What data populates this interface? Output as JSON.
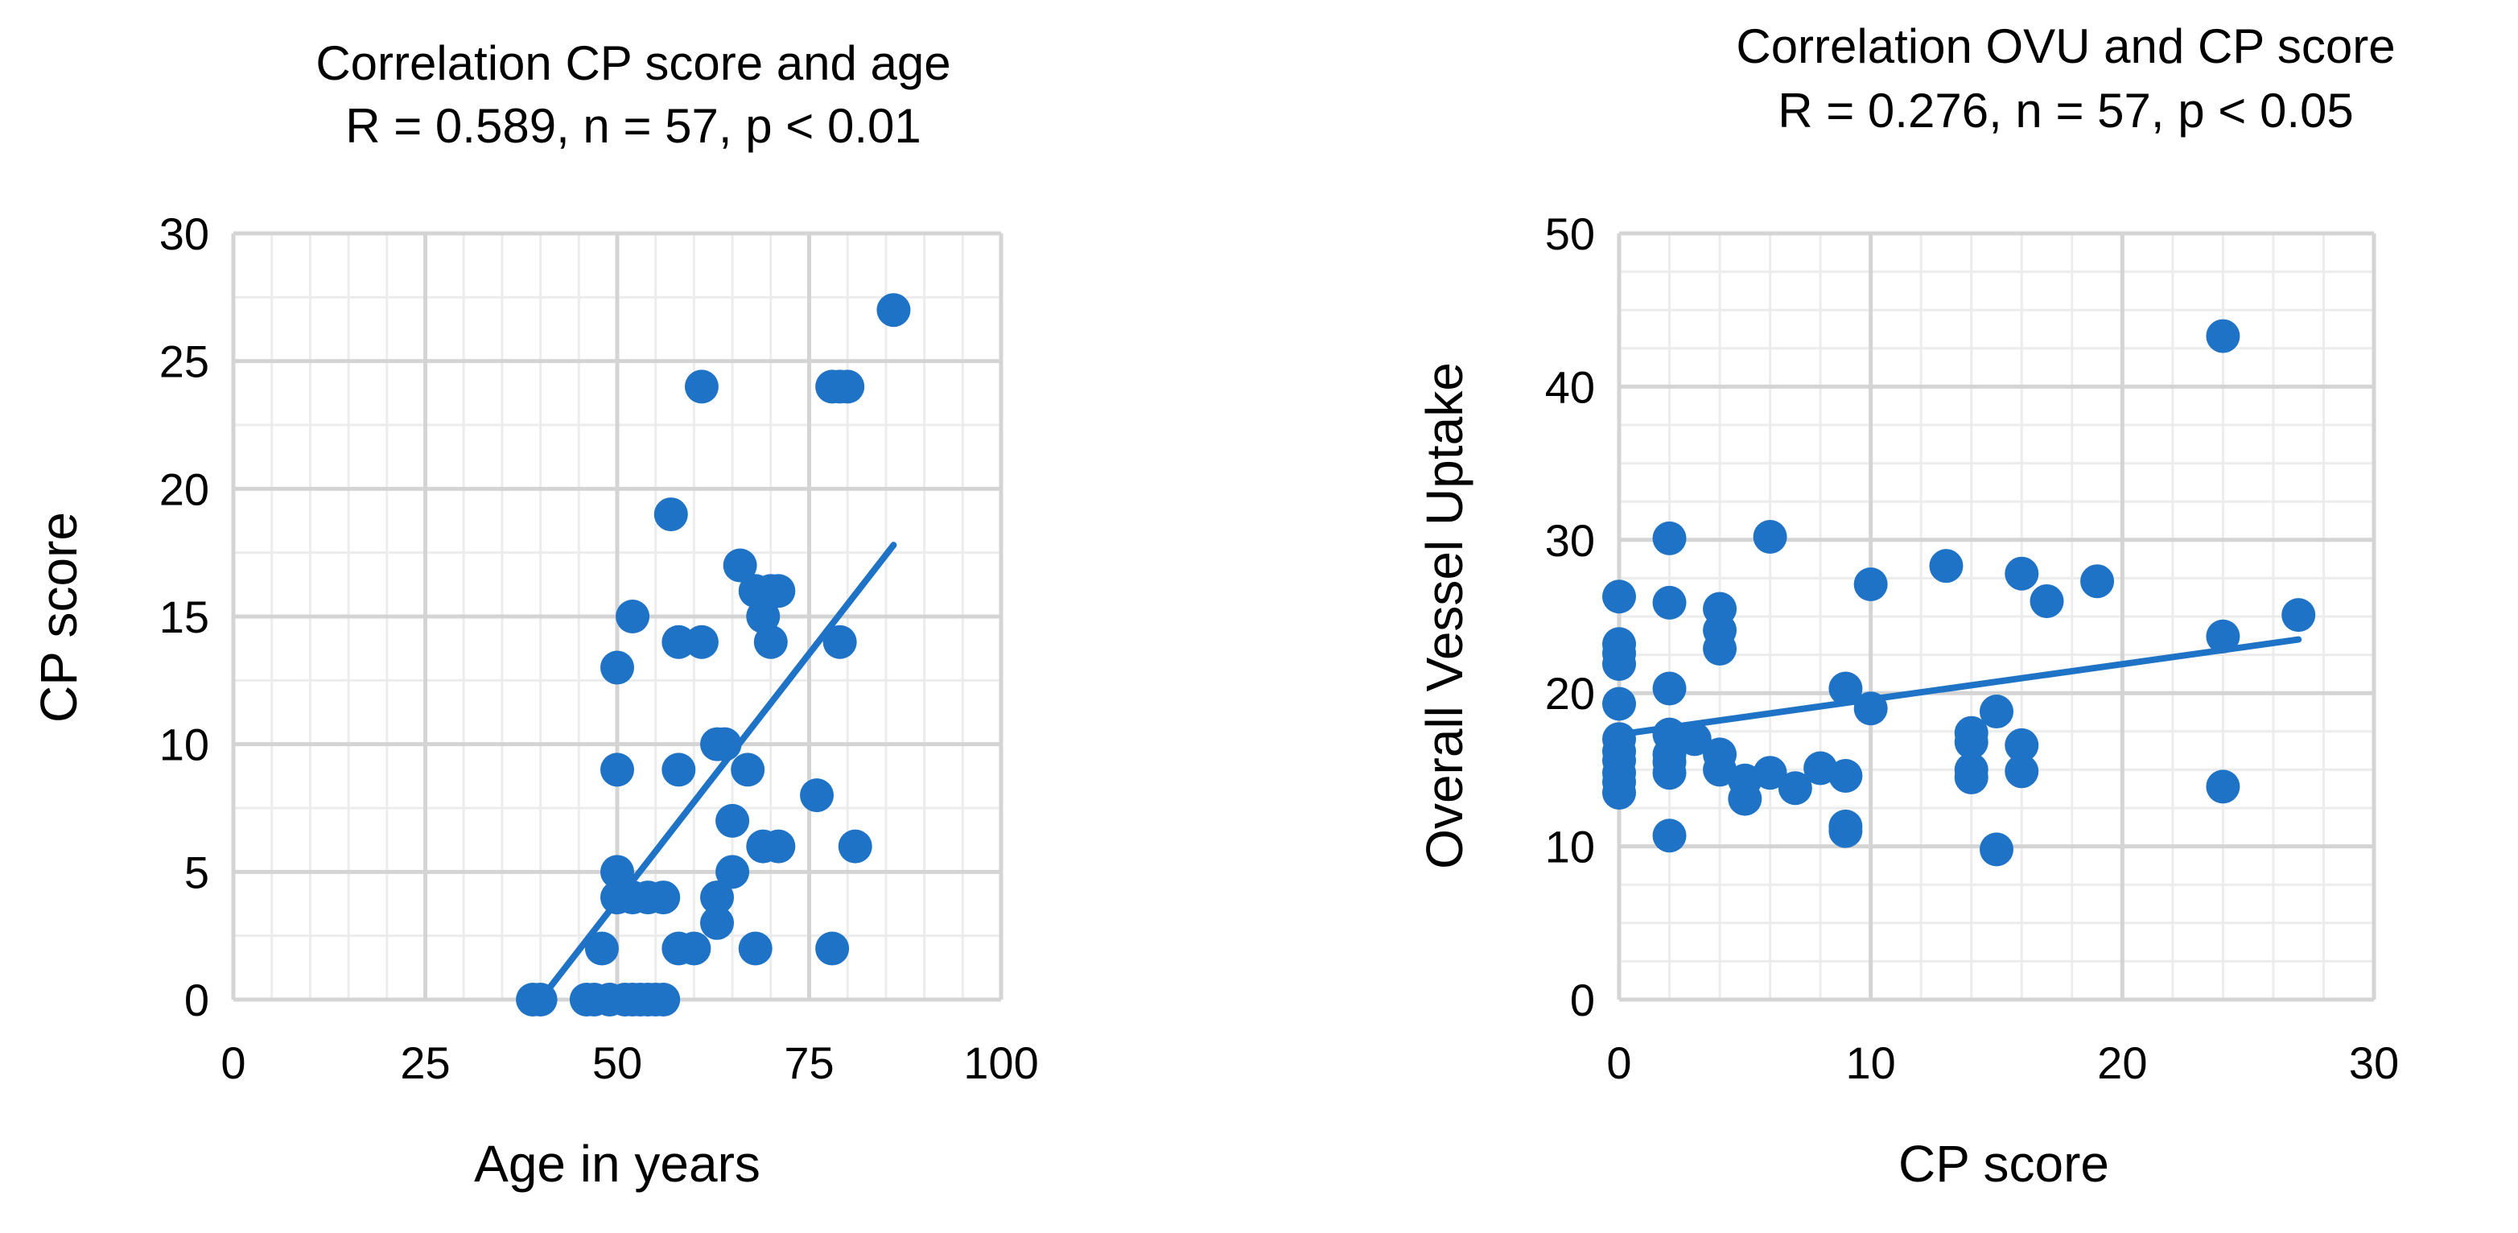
{
  "chart_data": [
    {
      "type": "scatter",
      "title": "Correlation CP score and age",
      "subtitle": "R = 0.589, n = 57, p < 0.01",
      "xlabel": "Age in years",
      "ylabel": "CP score",
      "xlim": [
        0,
        100
      ],
      "ylim": [
        0,
        30
      ],
      "xticks": [
        "0",
        "25",
        "50",
        "75",
        "100"
      ],
      "yticks": [
        "0",
        "5",
        "10",
        "15",
        "20",
        "25",
        "30"
      ],
      "grid": true,
      "marker_color": "#1f73c6",
      "trendline": {
        "x": [
          40,
          86
        ],
        "y": [
          0,
          17.8
        ]
      },
      "points": [
        [
          39,
          0
        ],
        [
          40,
          0
        ],
        [
          46,
          0
        ],
        [
          47,
          0
        ],
        [
          49,
          0
        ],
        [
          51,
          0
        ],
        [
          52,
          0
        ],
        [
          53,
          0
        ],
        [
          54,
          0
        ],
        [
          55,
          0
        ],
        [
          56,
          0
        ],
        [
          48,
          2
        ],
        [
          58,
          2
        ],
        [
          60,
          2
        ],
        [
          68,
          2
        ],
        [
          78,
          2
        ],
        [
          63,
          3
        ],
        [
          50,
          4
        ],
        [
          52,
          4
        ],
        [
          54,
          4
        ],
        [
          56,
          4
        ],
        [
          63,
          4
        ],
        [
          50,
          5
        ],
        [
          65,
          5
        ],
        [
          69,
          6
        ],
        [
          71,
          6
        ],
        [
          81,
          6
        ],
        [
          65,
          7
        ],
        [
          76,
          8
        ],
        [
          50,
          9
        ],
        [
          58,
          9
        ],
        [
          67,
          9
        ],
        [
          63,
          10
        ],
        [
          64,
          10
        ],
        [
          50,
          13
        ],
        [
          58,
          14
        ],
        [
          61,
          14
        ],
        [
          70,
          14
        ],
        [
          79,
          14
        ],
        [
          52,
          15
        ],
        [
          69,
          15
        ],
        [
          68,
          16
        ],
        [
          70,
          16
        ],
        [
          71,
          16
        ],
        [
          66,
          17
        ],
        [
          57,
          19
        ],
        [
          61,
          24
        ],
        [
          78,
          24
        ],
        [
          79,
          24
        ],
        [
          80,
          24
        ],
        [
          86,
          27
        ]
      ]
    },
    {
      "type": "scatter",
      "title": "Correlation OVU and CP score",
      "subtitle": "R = 0.276, n = 57, p < 0.05",
      "xlabel": "CP score",
      "ylabel": "Overall Vessel Uptake",
      "xlim": [
        0,
        30
      ],
      "ylim": [
        0,
        50
      ],
      "xticks": [
        "0",
        "10",
        "20",
        "30"
      ],
      "yticks": [
        "0",
        "10",
        "20",
        "30",
        "40",
        "50"
      ],
      "grid": true,
      "marker_color": "#1f73c6",
      "trendline": {
        "x": [
          0,
          27
        ],
        "y": [
          17.3,
          23.5
        ]
      },
      "points": [
        [
          0,
          26.3
        ],
        [
          0,
          23.2
        ],
        [
          0,
          22.6
        ],
        [
          0,
          21.9
        ],
        [
          0,
          19.3
        ],
        [
          0,
          17.0
        ],
        [
          0,
          16.2
        ],
        [
          0,
          15.6
        ],
        [
          0,
          14.8
        ],
        [
          0,
          14.2
        ],
        [
          0,
          13.5
        ],
        [
          2,
          30.1
        ],
        [
          2,
          25.9
        ],
        [
          2,
          20.3
        ],
        [
          2,
          17.3
        ],
        [
          2,
          16.0
        ],
        [
          2,
          15.5
        ],
        [
          2,
          14.8
        ],
        [
          2,
          10.7
        ],
        [
          3,
          17.0
        ],
        [
          4,
          25.5
        ],
        [
          4,
          24.1
        ],
        [
          4,
          22.9
        ],
        [
          4,
          16.0
        ],
        [
          4,
          15.0
        ],
        [
          5,
          14.3
        ],
        [
          5,
          13.1
        ],
        [
          6,
          30.2
        ],
        [
          6,
          14.8
        ],
        [
          7,
          13.8
        ],
        [
          8,
          15.1
        ],
        [
          9,
          20.3
        ],
        [
          9,
          14.6
        ],
        [
          9,
          11.3
        ],
        [
          9,
          11.0
        ],
        [
          10,
          27.1
        ],
        [
          10,
          19.0
        ],
        [
          13,
          28.3
        ],
        [
          14,
          17.4
        ],
        [
          14,
          16.8
        ],
        [
          14,
          15.0
        ],
        [
          14,
          14.5
        ],
        [
          15,
          18.8
        ],
        [
          15,
          9.8
        ],
        [
          16,
          27.8
        ],
        [
          16,
          16.6
        ],
        [
          16,
          14.9
        ],
        [
          17,
          26.0
        ],
        [
          19,
          27.3
        ],
        [
          24,
          43.3
        ],
        [
          24,
          23.7
        ],
        [
          24,
          13.9
        ],
        [
          27,
          25.1
        ]
      ]
    }
  ]
}
